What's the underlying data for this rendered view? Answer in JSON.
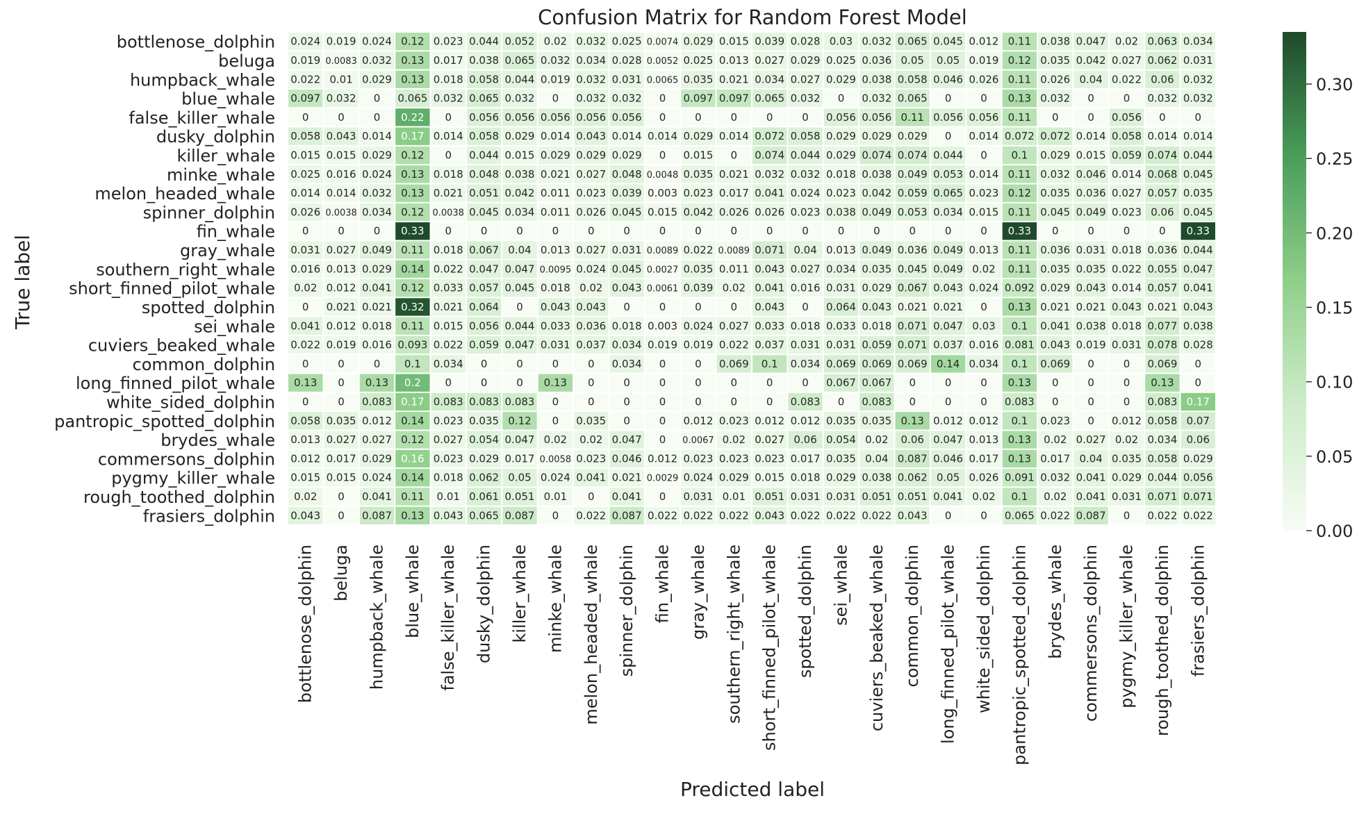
{
  "chart_data": {
    "type": "heatmap",
    "title": "Confusion Matrix for Random Forest Model",
    "xlabel": "Predicted label",
    "ylabel": "True label",
    "categories": [
      "bottlenose_dolphin",
      "beluga",
      "humpback_whale",
      "blue_whale",
      "false_killer_whale",
      "dusky_dolphin",
      "killer_whale",
      "minke_whale",
      "melon_headed_whale",
      "spinner_dolphin",
      "fin_whale",
      "gray_whale",
      "southern_right_whale",
      "short_finned_pilot_whale",
      "spotted_dolphin",
      "sei_whale",
      "cuviers_beaked_whale",
      "common_dolphin",
      "long_finned_pilot_whale",
      "white_sided_dolphin",
      "pantropic_spotted_dolphin",
      "brydes_whale",
      "commersons_dolphin",
      "pygmy_killer_whale",
      "rough_toothed_dolphin",
      "frasiers_dolphin"
    ],
    "rows": [
      {
        "label": "bottlenose_dolphin",
        "values": [
          "0.024",
          "0.019",
          "0.024",
          "0.12",
          "0.023",
          "0.044",
          "0.052",
          "0.02",
          "0.032",
          "0.025",
          "0.0074",
          "0.029",
          "0.015",
          "0.039",
          "0.028",
          "0.03",
          "0.032",
          "0.065",
          "0.045",
          "0.012",
          "0.11",
          "0.038",
          "0.047",
          "0.02",
          "0.063",
          "0.034"
        ]
      },
      {
        "label": "beluga",
        "values": [
          "0.019",
          "0.0083",
          "0.032",
          "0.13",
          "0.017",
          "0.038",
          "0.065",
          "0.032",
          "0.034",
          "0.028",
          "0.0052",
          "0.025",
          "0.013",
          "0.027",
          "0.029",
          "0.025",
          "0.036",
          "0.05",
          "0.05",
          "0.019",
          "0.12",
          "0.035",
          "0.042",
          "0.027",
          "0.062",
          "0.031"
        ]
      },
      {
        "label": "humpback_whale",
        "values": [
          "0.022",
          "0.01",
          "0.029",
          "0.13",
          "0.018",
          "0.058",
          "0.044",
          "0.019",
          "0.032",
          "0.031",
          "0.0065",
          "0.035",
          "0.021",
          "0.034",
          "0.027",
          "0.029",
          "0.038",
          "0.058",
          "0.046",
          "0.026",
          "0.11",
          "0.026",
          "0.04",
          "0.022",
          "0.06",
          "0.032"
        ]
      },
      {
        "label": "blue_whale",
        "values": [
          "0.097",
          "0.032",
          "0",
          "0.065",
          "0.032",
          "0.065",
          "0.032",
          "0",
          "0.032",
          "0.032",
          "0",
          "0.097",
          "0.097",
          "0.065",
          "0.032",
          "0",
          "0.032",
          "0.065",
          "0",
          "0",
          "0.13",
          "0.032",
          "0",
          "0",
          "0.032",
          "0.032"
        ]
      },
      {
        "label": "false_killer_whale",
        "values": [
          "0",
          "0",
          "0",
          "0.22",
          "0",
          "0.056",
          "0.056",
          "0.056",
          "0.056",
          "0.056",
          "0",
          "0",
          "0",
          "0",
          "0",
          "0.056",
          "0.056",
          "0.11",
          "0.056",
          "0.056",
          "0.11",
          "0",
          "0",
          "0.056",
          "0",
          "0"
        ]
      },
      {
        "label": "dusky_dolphin",
        "values": [
          "0.058",
          "0.043",
          "0.014",
          "0.17",
          "0.014",
          "0.058",
          "0.029",
          "0.014",
          "0.043",
          "0.014",
          "0.014",
          "0.029",
          "0.014",
          "0.072",
          "0.058",
          "0.029",
          "0.029",
          "0.029",
          "0",
          "0.014",
          "0.072",
          "0.072",
          "0.014",
          "0.058",
          "0.014",
          "0.014"
        ]
      },
      {
        "label": "killer_whale",
        "values": [
          "0.015",
          "0.015",
          "0.029",
          "0.12",
          "0",
          "0.044",
          "0.015",
          "0.029",
          "0.029",
          "0.029",
          "0",
          "0.015",
          "0",
          "0.074",
          "0.044",
          "0.029",
          "0.074",
          "0.074",
          "0.044",
          "0",
          "0.1",
          "0.029",
          "0.015",
          "0.059",
          "0.074",
          "0.044"
        ]
      },
      {
        "label": "minke_whale",
        "values": [
          "0.025",
          "0.016",
          "0.024",
          "0.13",
          "0.018",
          "0.048",
          "0.038",
          "0.021",
          "0.027",
          "0.048",
          "0.0048",
          "0.035",
          "0.021",
          "0.032",
          "0.032",
          "0.018",
          "0.038",
          "0.049",
          "0.053",
          "0.014",
          "0.11",
          "0.032",
          "0.046",
          "0.014",
          "0.068",
          "0.045"
        ]
      },
      {
        "label": "melon_headed_whale",
        "values": [
          "0.014",
          "0.014",
          "0.032",
          "0.13",
          "0.021",
          "0.051",
          "0.042",
          "0.011",
          "0.023",
          "0.039",
          "0.003",
          "0.023",
          "0.017",
          "0.041",
          "0.024",
          "0.023",
          "0.042",
          "0.059",
          "0.065",
          "0.023",
          "0.12",
          "0.035",
          "0.036",
          "0.027",
          "0.057",
          "0.035"
        ]
      },
      {
        "label": "spinner_dolphin",
        "values": [
          "0.026",
          "0.0038",
          "0.034",
          "0.12",
          "0.0038",
          "0.045",
          "0.034",
          "0.011",
          "0.026",
          "0.045",
          "0.015",
          "0.042",
          "0.026",
          "0.026",
          "0.023",
          "0.038",
          "0.049",
          "0.053",
          "0.034",
          "0.015",
          "0.11",
          "0.045",
          "0.049",
          "0.023",
          "0.06",
          "0.045"
        ]
      },
      {
        "label": "fin_whale",
        "values": [
          "0",
          "0",
          "0",
          "0.33",
          "0",
          "0",
          "0",
          "0",
          "0",
          "0",
          "0",
          "0",
          "0",
          "0",
          "0",
          "0",
          "0",
          "0",
          "0",
          "0",
          "0.33",
          "0",
          "0",
          "0",
          "0",
          "0.33"
        ]
      },
      {
        "label": "gray_whale",
        "values": [
          "0.031",
          "0.027",
          "0.049",
          "0.11",
          "0.018",
          "0.067",
          "0.04",
          "0.013",
          "0.027",
          "0.031",
          "0.0089",
          "0.022",
          "0.0089",
          "0.071",
          "0.04",
          "0.013",
          "0.049",
          "0.036",
          "0.049",
          "0.013",
          "0.11",
          "0.036",
          "0.031",
          "0.018",
          "0.036",
          "0.044"
        ]
      },
      {
        "label": "southern_right_whale",
        "values": [
          "0.016",
          "0.013",
          "0.029",
          "0.14",
          "0.022",
          "0.047",
          "0.047",
          "0.0095",
          "0.024",
          "0.045",
          "0.0027",
          "0.035",
          "0.011",
          "0.043",
          "0.027",
          "0.034",
          "0.035",
          "0.045",
          "0.049",
          "0.02",
          "0.11",
          "0.035",
          "0.035",
          "0.022",
          "0.055",
          "0.047"
        ]
      },
      {
        "label": "short_finned_pilot_whale",
        "values": [
          "0.02",
          "0.012",
          "0.041",
          "0.12",
          "0.033",
          "0.057",
          "0.045",
          "0.018",
          "0.02",
          "0.043",
          "0.0061",
          "0.039",
          "0.02",
          "0.041",
          "0.016",
          "0.031",
          "0.029",
          "0.067",
          "0.043",
          "0.024",
          "0.092",
          "0.029",
          "0.043",
          "0.014",
          "0.057",
          "0.041"
        ]
      },
      {
        "label": "spotted_dolphin",
        "values": [
          "0",
          "0.021",
          "0.021",
          "0.32",
          "0.021",
          "0.064",
          "0",
          "0.043",
          "0.043",
          "0",
          "0",
          "0",
          "0",
          "0.043",
          "0",
          "0.064",
          "0.043",
          "0.021",
          "0.021",
          "0",
          "0.13",
          "0.021",
          "0.021",
          "0.043",
          "0.021",
          "0.043"
        ]
      },
      {
        "label": "sei_whale",
        "values": [
          "0.041",
          "0.012",
          "0.018",
          "0.11",
          "0.015",
          "0.056",
          "0.044",
          "0.033",
          "0.036",
          "0.018",
          "0.003",
          "0.024",
          "0.027",
          "0.033",
          "0.018",
          "0.033",
          "0.018",
          "0.071",
          "0.047",
          "0.03",
          "0.1",
          "0.041",
          "0.038",
          "0.018",
          "0.077",
          "0.038"
        ]
      },
      {
        "label": "cuviers_beaked_whale",
        "values": [
          "0.022",
          "0.019",
          "0.016",
          "0.093",
          "0.022",
          "0.059",
          "0.047",
          "0.031",
          "0.037",
          "0.034",
          "0.019",
          "0.019",
          "0.022",
          "0.037",
          "0.031",
          "0.031",
          "0.059",
          "0.071",
          "0.037",
          "0.016",
          "0.081",
          "0.043",
          "0.019",
          "0.031",
          "0.078",
          "0.028"
        ]
      },
      {
        "label": "common_dolphin",
        "values": [
          "0",
          "0",
          "0",
          "0.1",
          "0.034",
          "0",
          "0",
          "0",
          "0",
          "0.034",
          "0",
          "0",
          "0.069",
          "0.1",
          "0.034",
          "0.069",
          "0.069",
          "0.069",
          "0.14",
          "0.034",
          "0.1",
          "0.069",
          "0",
          "0",
          "0.069",
          "0"
        ]
      },
      {
        "label": "long_finned_pilot_whale",
        "values": [
          "0.13",
          "0",
          "0.13",
          "0.2",
          "0",
          "0",
          "0",
          "0.13",
          "0",
          "0",
          "0",
          "0",
          "0",
          "0",
          "0",
          "0.067",
          "0.067",
          "0",
          "0",
          "0",
          "0.13",
          "0",
          "0",
          "0",
          "0.13",
          "0"
        ]
      },
      {
        "label": "white_sided_dolphin",
        "values": [
          "0",
          "0",
          "0.083",
          "0.17",
          "0.083",
          "0.083",
          "0.083",
          "0",
          "0",
          "0",
          "0",
          "0",
          "0",
          "0",
          "0.083",
          "0",
          "0.083",
          "0",
          "0",
          "0",
          "0.083",
          "0",
          "0",
          "0",
          "0.083",
          "0.17"
        ]
      },
      {
        "label": "pantropic_spotted_dolphin",
        "values": [
          "0.058",
          "0.035",
          "0.012",
          "0.14",
          "0.023",
          "0.035",
          "0.12",
          "0",
          "0.035",
          "0",
          "0",
          "0.012",
          "0.023",
          "0.012",
          "0.012",
          "0.035",
          "0.035",
          "0.13",
          "0.012",
          "0.012",
          "0.1",
          "0.023",
          "0",
          "0.012",
          "0.058",
          "0.07"
        ]
      },
      {
        "label": "brydes_whale",
        "values": [
          "0.013",
          "0.027",
          "0.027",
          "0.12",
          "0.027",
          "0.054",
          "0.047",
          "0.02",
          "0.02",
          "0.047",
          "0",
          "0.0067",
          "0.02",
          "0.027",
          "0.06",
          "0.054",
          "0.02",
          "0.06",
          "0.047",
          "0.013",
          "0.13",
          "0.02",
          "0.027",
          "0.02",
          "0.034",
          "0.06"
        ]
      },
      {
        "label": "commersons_dolphin",
        "values": [
          "0.012",
          "0.017",
          "0.029",
          "0.16",
          "0.023",
          "0.029",
          "0.017",
          "0.0058",
          "0.023",
          "0.046",
          "0.012",
          "0.023",
          "0.023",
          "0.023",
          "0.017",
          "0.035",
          "0.04",
          "0.087",
          "0.046",
          "0.017",
          "0.13",
          "0.017",
          "0.04",
          "0.035",
          "0.058",
          "0.029"
        ]
      },
      {
        "label": "pygmy_killer_whale",
        "values": [
          "0.015",
          "0.015",
          "0.024",
          "0.14",
          "0.018",
          "0.062",
          "0.05",
          "0.024",
          "0.041",
          "0.021",
          "0.0029",
          "0.024",
          "0.029",
          "0.015",
          "0.018",
          "0.029",
          "0.038",
          "0.062",
          "0.05",
          "0.026",
          "0.091",
          "0.032",
          "0.041",
          "0.029",
          "0.044",
          "0.056"
        ]
      },
      {
        "label": "rough_toothed_dolphin",
        "values": [
          "0.02",
          "0",
          "0.041",
          "0.11",
          "0.01",
          "0.061",
          "0.051",
          "0.01",
          "0",
          "0.041",
          "0",
          "0.031",
          "0.01",
          "0.051",
          "0.031",
          "0.031",
          "0.051",
          "0.051",
          "0.041",
          "0.02",
          "0.1",
          "0.02",
          "0.041",
          "0.031",
          "0.071",
          "0.071"
        ]
      },
      {
        "label": "frasiers_dolphin",
        "values": [
          "0.043",
          "0",
          "0.087",
          "0.13",
          "0.043",
          "0.065",
          "0.087",
          "0",
          "0.022",
          "0.087",
          "0.022",
          "0.022",
          "0.022",
          "0.043",
          "0.022",
          "0.022",
          "0.022",
          "0.043",
          "0",
          "0",
          "0.065",
          "0.022",
          "0.087",
          "0",
          "0.022",
          "0.022"
        ]
      }
    ],
    "colorbar": {
      "vmin": 0,
      "vmax": 0.33,
      "ticks": [
        "0.00",
        "0.05",
        "0.10",
        "0.15",
        "0.20",
        "0.25",
        "0.30"
      ],
      "colormap": "light green to dark green",
      "color_low": "#f7fcf5",
      "color_high": "#1f4a2b"
    },
    "grid": false,
    "legend": "colorbar right"
  }
}
